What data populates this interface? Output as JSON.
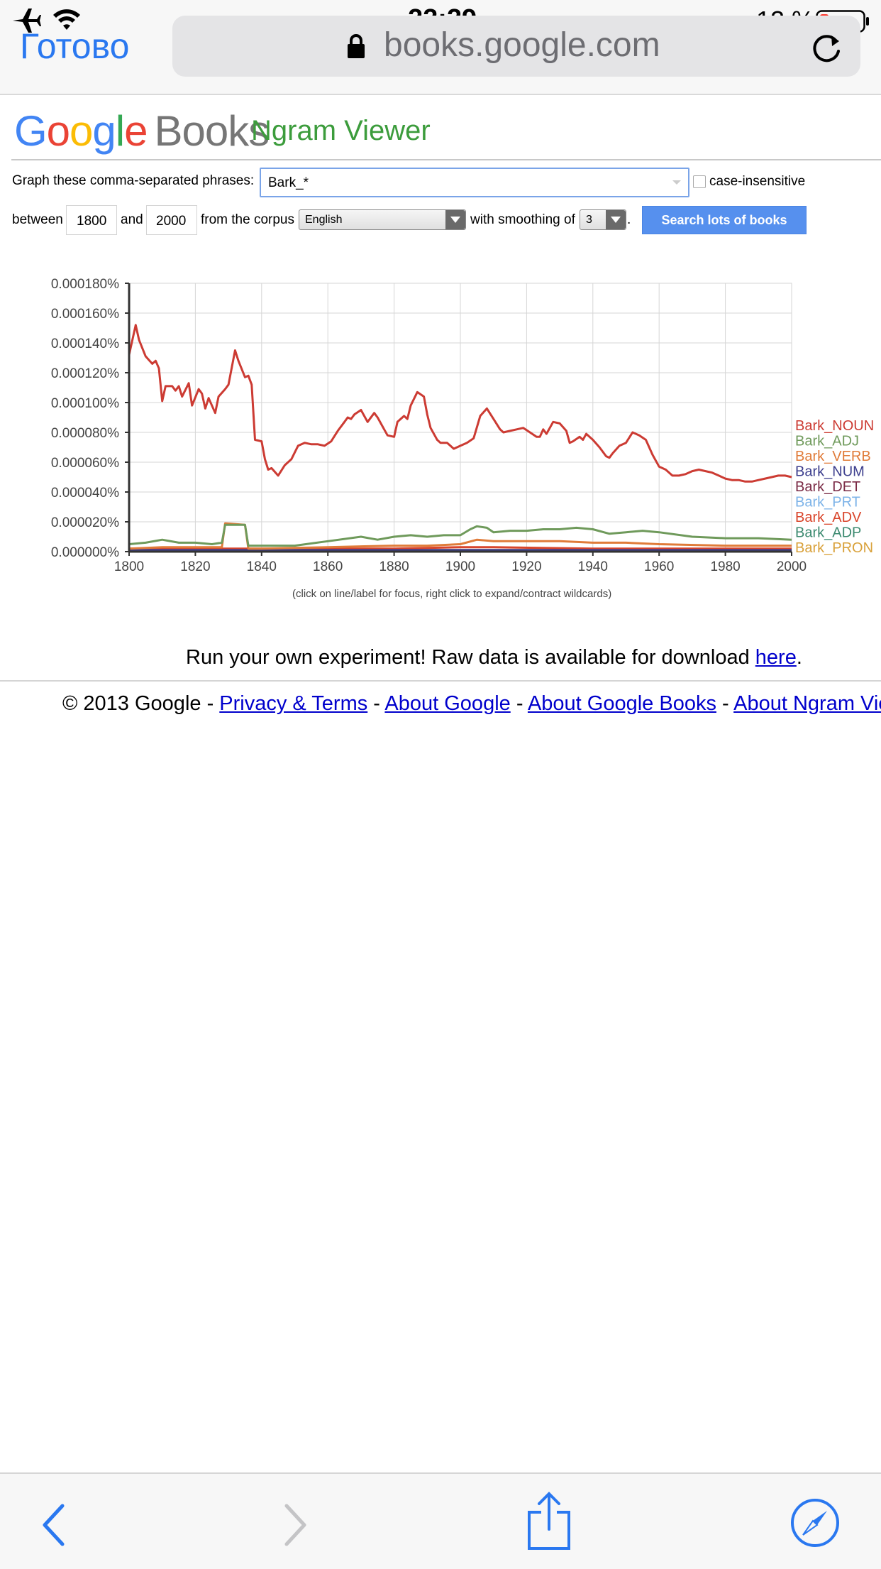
{
  "status": {
    "time": "22:29",
    "battery": "12 %"
  },
  "browser": {
    "done_label": "Готово",
    "url": "books.google.com"
  },
  "header": {
    "logo_letters": [
      "G",
      "o",
      "o",
      "g",
      "l",
      "e"
    ],
    "books": "Books",
    "title": "Ngram Viewer"
  },
  "form": {
    "phrases_label": "Graph these comma-separated phrases:",
    "phrase_value": "Bark_*",
    "case_label": "case-insensitive",
    "case_checked": false,
    "between_label": "between",
    "year_start": "1800",
    "and_label": "and",
    "year_end": "2000",
    "corpus_label": "from the corpus",
    "corpus_value": "English",
    "smoothing_label": "with smoothing of",
    "smoothing_value": "3",
    "period": ".",
    "search_button": "Search lots of books"
  },
  "chart_data": {
    "type": "line",
    "x_range": [
      1800,
      2000
    ],
    "ylim": [
      0,
      0.00018
    ],
    "y_tick_labels": [
      "0.000000%",
      "0.000020%",
      "0.000040%",
      "0.000060%",
      "0.000080%",
      "0.000100%",
      "0.000120%",
      "0.000140%",
      "0.000160%",
      "0.000180%"
    ],
    "x_tick_labels": [
      "1800",
      "1820",
      "1840",
      "1860",
      "1880",
      "1900",
      "1920",
      "1940",
      "1960",
      "1980",
      "2000"
    ],
    "grid": true,
    "legend_position": "right",
    "note": "(click on line/label for focus, right click to expand/contract wildcards)",
    "series": [
      {
        "name": "Bark_NOUN",
        "color": "#cc3b33",
        "x": [
          1800,
          1802,
          1803,
          1805,
          1807,
          1808,
          1809,
          1810,
          1811,
          1813,
          1814,
          1815,
          1816,
          1818,
          1819,
          1821,
          1822,
          1823,
          1824,
          1826,
          1827,
          1829,
          1830,
          1832,
          1833,
          1835,
          1836,
          1837,
          1838,
          1840,
          1841,
          1842,
          1843,
          1845,
          1847,
          1849,
          1851,
          1853,
          1855,
          1857,
          1859,
          1861,
          1863,
          1865,
          1866,
          1867,
          1868,
          1870,
          1872,
          1874,
          1875,
          1877,
          1878,
          1880,
          1881,
          1883,
          1884,
          1885,
          1887,
          1889,
          1890,
          1891,
          1893,
          1894,
          1896,
          1898,
          1900,
          1902,
          1904,
          1906,
          1908,
          1910,
          1912,
          1913,
          1915,
          1917,
          1919,
          1921,
          1923,
          1924,
          1925,
          1926,
          1928,
          1930,
          1932,
          1933,
          1934,
          1936,
          1937,
          1938,
          1940,
          1942,
          1944,
          1945,
          1946,
          1948,
          1950,
          1952,
          1954,
          1956,
          1958,
          1960,
          1962,
          1964,
          1966,
          1968,
          1970,
          1972,
          1974,
          1976,
          1978,
          1980,
          1982,
          1984,
          1986,
          1988,
          1990,
          1992,
          1994,
          1996,
          1998,
          2000
        ],
        "y": [
          0.000132,
          0.000152,
          0.000142,
          0.000131,
          0.000126,
          0.000128,
          0.000123,
          0.000101,
          0.000111,
          0.000111,
          0.000108,
          0.000111,
          0.000104,
          0.000113,
          9.8e-05,
          0.000109,
          0.000106,
          9.6e-05,
          0.000103,
          9.3e-05,
          0.000104,
          0.000109,
          0.000112,
          0.000135,
          0.000128,
          0.000117,
          0.000118,
          0.000112,
          7.5e-05,
          7.4e-05,
          6.2e-05,
          5.5e-05,
          5.6e-05,
          5.1e-05,
          5.8e-05,
          6.2e-05,
          7.1e-05,
          7.3e-05,
          7.2e-05,
          7.2e-05,
          7.1e-05,
          7.4e-05,
          8.1e-05,
          8.7e-05,
          9e-05,
          8.9e-05,
          9.2e-05,
          9.5e-05,
          8.7e-05,
          9.3e-05,
          9e-05,
          8.2e-05,
          7.8e-05,
          7.7e-05,
          8.7e-05,
          9.1e-05,
          8.9e-05,
          9.8e-05,
          0.000107,
          0.000104,
          9.2e-05,
          8.3e-05,
          7.5e-05,
          7.3e-05,
          7.3e-05,
          6.9e-05,
          7.1e-05,
          7.3e-05,
          7.6e-05,
          9.1e-05,
          9.6e-05,
          8.9e-05,
          8.2e-05,
          8e-05,
          8.1e-05,
          8.2e-05,
          8.3e-05,
          8e-05,
          7.7e-05,
          7.7e-05,
          8.2e-05,
          7.9e-05,
          8.7e-05,
          8.6e-05,
          8.1e-05,
          7.3e-05,
          7.4e-05,
          7.7e-05,
          7.5e-05,
          7.9e-05,
          7.5e-05,
          7e-05,
          6.4e-05,
          6.3e-05,
          6.6e-05,
          7.1e-05,
          7.3e-05,
          8e-05,
          7.8e-05,
          7.5e-05,
          6.5e-05,
          5.7e-05,
          5.5e-05,
          5.1e-05,
          5.1e-05,
          5.2e-05,
          5.4e-05,
          5.5e-05,
          5.4e-05,
          5.3e-05,
          5.1e-05,
          4.9e-05,
          4.8e-05,
          4.8e-05,
          4.7e-05,
          4.7e-05,
          4.8e-05,
          4.9e-05,
          5e-05,
          5.1e-05,
          5.1e-05,
          5e-05
        ]
      },
      {
        "name": "Bark_ADJ",
        "color": "#6f9a5b",
        "x": [
          1800,
          1805,
          1810,
          1815,
          1820,
          1825,
          1828,
          1829,
          1835,
          1836,
          1840,
          1850,
          1860,
          1870,
          1875,
          1880,
          1885,
          1890,
          1895,
          1900,
          1903,
          1905,
          1908,
          1910,
          1915,
          1920,
          1925,
          1930,
          1935,
          1940,
          1945,
          1950,
          1955,
          1960,
          1970,
          1980,
          1990,
          2000
        ],
        "y": [
          5e-06,
          6e-06,
          8e-06,
          6e-06,
          6e-06,
          5e-06,
          6e-06,
          1.8e-05,
          1.8e-05,
          4e-06,
          4e-06,
          4e-06,
          7e-06,
          1e-05,
          8e-06,
          1e-05,
          1.1e-05,
          1e-05,
          1.1e-05,
          1.1e-05,
          1.5e-05,
          1.7e-05,
          1.6e-05,
          1.3e-05,
          1.4e-05,
          1.4e-05,
          1.5e-05,
          1.5e-05,
          1.6e-05,
          1.5e-05,
          1.2e-05,
          1.3e-05,
          1.4e-05,
          1.3e-05,
          1e-05,
          9e-06,
          9e-06,
          8e-06
        ]
      },
      {
        "name": "Bark_VERB",
        "color": "#e07b39",
        "x": [
          1800,
          1810,
          1820,
          1828,
          1829,
          1835,
          1836,
          1840,
          1860,
          1880,
          1890,
          1900,
          1905,
          1910,
          1920,
          1930,
          1940,
          1950,
          1960,
          1980,
          2000
        ],
        "y": [
          2e-06,
          3e-06,
          3e-06,
          3e-06,
          1.9e-05,
          1.8e-05,
          2e-06,
          2e-06,
          3e-06,
          4e-06,
          4e-06,
          5e-06,
          8e-06,
          7e-06,
          7e-06,
          7e-06,
          6e-06,
          6e-06,
          5e-06,
          4e-06,
          4e-06
        ]
      },
      {
        "name": "Bark_NUM",
        "color": "#3d3f8e",
        "x": [
          1800,
          2000
        ],
        "y": [
          1e-06,
          1e-06
        ]
      },
      {
        "name": "Bark_DET",
        "color": "#7a2a45",
        "x": [
          1800,
          2000
        ],
        "y": [
          1e-06,
          1e-06
        ]
      },
      {
        "name": "Bark_PRT",
        "color": "#7db3e8",
        "x": [
          1800,
          2000
        ],
        "y": [
          0.0,
          0.0
        ]
      },
      {
        "name": "Bark_ADV",
        "color": "#d9452b",
        "x": [
          1800,
          1830,
          1840,
          1880,
          1900,
          1910,
          1940,
          1960,
          2000
        ],
        "y": [
          2e-06,
          2e-06,
          2e-06,
          2e-06,
          3e-06,
          3e-06,
          2e-06,
          2e-06,
          2e-06
        ]
      },
      {
        "name": "Bark_ADP",
        "color": "#3c8a70",
        "x": [
          1800,
          2000
        ],
        "y": [
          1e-06,
          1e-06
        ]
      },
      {
        "name": "Bark_PRON",
        "color": "#d9a13a",
        "x": [
          1800,
          2000
        ],
        "y": [
          1e-06,
          1e-06
        ]
      }
    ]
  },
  "raw_data": {
    "text": "Run your own experiment! Raw data is available for download ",
    "link": "here",
    "end": "."
  },
  "footer": {
    "copyright": "© 2013 Google - ",
    "links": [
      "Privacy & Terms",
      "About Google",
      "About Google Books",
      "About Ngram Vie"
    ],
    "sep": " - "
  }
}
